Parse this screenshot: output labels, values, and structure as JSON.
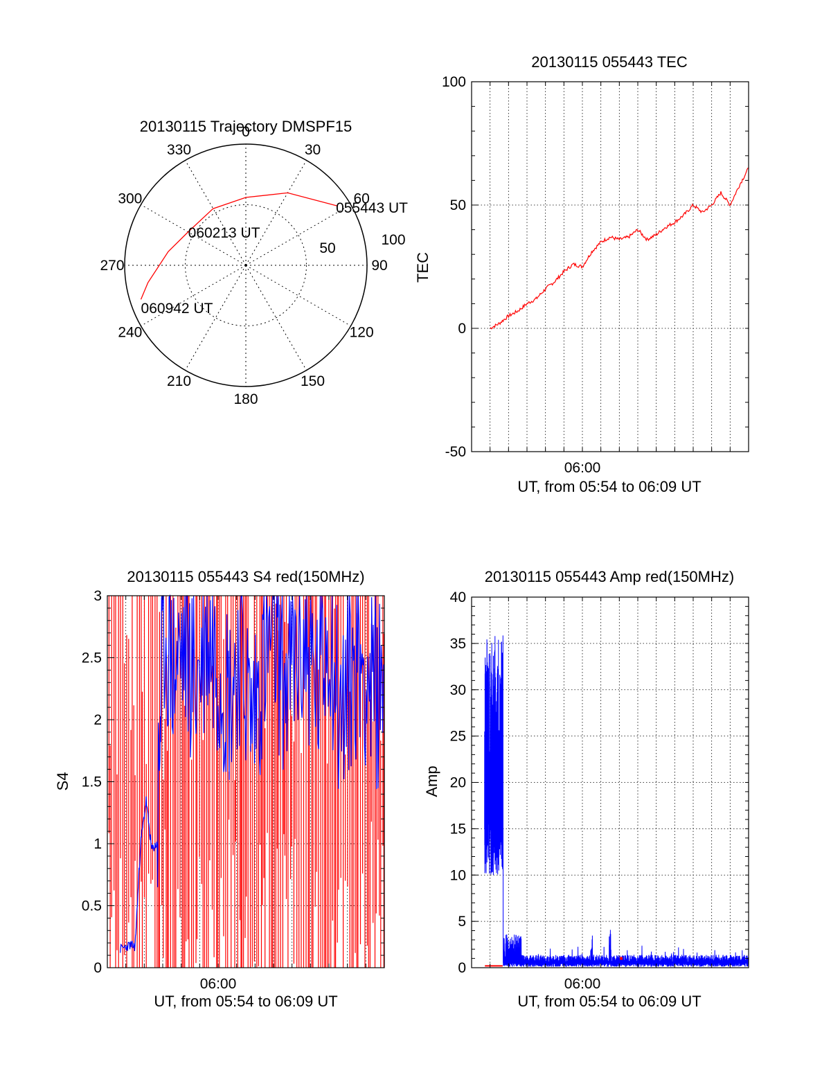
{
  "chart_data": [
    {
      "type": "polar",
      "title": "20130115 Trajectory DMSPF15",
      "angle_labels": [
        "0",
        "30",
        "60",
        "90",
        "120",
        "150",
        "180",
        "210",
        "240",
        "270",
        "300",
        "330"
      ],
      "angle_values": [
        0,
        30,
        60,
        90,
        120,
        150,
        180,
        210,
        240,
        270,
        300,
        330
      ],
      "radial_labels": [
        "50",
        "100"
      ],
      "radial_values": [
        50,
        100
      ],
      "rlim": [
        0,
        100
      ],
      "grid": true,
      "colors": {
        "track": "#ff0000"
      },
      "track": {
        "name": "",
        "points": [
          {
            "az": 57,
            "r": 90,
            "label": "055443 UT"
          },
          {
            "az": 30,
            "r": 69
          },
          {
            "az": 0,
            "r": 56
          },
          {
            "az": 330,
            "r": 54
          },
          {
            "az": 300,
            "r": 55,
            "label": "060213 UT"
          },
          {
            "az": 280,
            "r": 65
          },
          {
            "az": 260,
            "r": 82
          },
          {
            "az": 252,
            "r": 91,
            "label": "060942 UT"
          }
        ]
      }
    },
    {
      "type": "line",
      "title": "20130115 055443 TEC",
      "ylabel": "TEC",
      "xlabel": "UT, from 05:54 to 06:09 UT",
      "x_tick_labels": [
        "06:00"
      ],
      "x_tick_values": [
        6.0
      ],
      "xlim": [
        5.9,
        6.15
      ],
      "ylim": [
        -50,
        100
      ],
      "y_ticks": [
        -50,
        0,
        50,
        100
      ],
      "grid": true,
      "colors": {
        "line": "#ff0000"
      },
      "series": [
        {
          "name": "",
          "x": [
            5.9167,
            5.925,
            5.9333,
            5.9417,
            5.95,
            5.9583,
            5.9667,
            5.975,
            5.9833,
            5.9917,
            6.0,
            6.0083,
            6.0167,
            6.025,
            6.0333,
            6.0417,
            6.05,
            6.0583,
            6.0667,
            6.075,
            6.0833,
            6.0917,
            6.1,
            6.1083,
            6.1167,
            6.125,
            6.1333,
            6.1417,
            6.15
          ],
          "y": [
            0,
            2,
            5,
            7,
            10,
            12,
            16,
            19,
            23,
            26,
            25,
            31,
            35,
            37,
            36,
            37,
            40,
            36,
            38,
            41,
            43,
            46,
            50,
            47,
            50,
            55,
            50,
            58,
            65
          ]
        }
      ]
    },
    {
      "type": "line",
      "title": "20130115 055443 S4 red(150MHz)",
      "ylabel": "S4",
      "xlabel": "UT, from 05:54 to 06:09 UT",
      "x_tick_labels": [
        "06:00"
      ],
      "x_tick_values": [
        6.0
      ],
      "xlim": [
        5.9,
        6.15
      ],
      "ylim": [
        0,
        3
      ],
      "y_ticks": [
        0,
        0.5,
        1,
        1.5,
        2,
        2.5,
        3
      ],
      "y_tick_labels": [
        "0",
        "0.5",
        "1",
        "1.5",
        "2",
        "2.5",
        "3"
      ],
      "grid": true,
      "colors": {
        "red": "#ff0000",
        "blue": "#0000ff"
      },
      "series": [
        {
          "name": "",
          "color": "red",
          "description_values": "vertical fills 0 to 3 across full range"
        },
        {
          "name": "",
          "color": "blue",
          "x": [
            5.9117,
            5.92,
            5.925,
            5.93,
            5.935,
            5.94,
            5.945,
            5.95,
            5.96,
            5.97,
            5.98,
            5.99,
            6.0,
            6.01,
            6.02,
            6.03,
            6.04,
            6.05,
            6.06,
            6.07,
            6.08,
            6.09,
            6.1,
            6.11,
            6.12,
            6.13,
            6.14,
            6.15
          ],
          "y": [
            0.15,
            0.18,
            0.17,
            1.0,
            1.35,
            0.95,
            1.0,
            2.8,
            2.4,
            2.6,
            2.3,
            2.7,
            2.5,
            2.2,
            2.6,
            2.0,
            2.4,
            2.7,
            2.3,
            2.5,
            2.6,
            2.2,
            2.8,
            2.0,
            2.4,
            2.5,
            2.2,
            2.3
          ]
        }
      ]
    },
    {
      "type": "line",
      "title": "20130115 055443 Amp red(150MHz)",
      "ylabel": "Amp",
      "xlabel": "UT, from 05:54 to 06:09 UT",
      "x_tick_labels": [
        "06:00"
      ],
      "x_tick_values": [
        6.0
      ],
      "xlim": [
        5.9,
        6.15
      ],
      "ylim": [
        0,
        40
      ],
      "y_ticks": [
        0,
        5,
        10,
        15,
        20,
        25,
        30,
        35,
        40
      ],
      "grid": true,
      "colors": {
        "red": "#ff0000",
        "blue": "#0000ff"
      },
      "series": [
        {
          "name": "",
          "color": "blue",
          "x": [
            5.9117,
            5.9133,
            5.915,
            5.9167,
            5.9183,
            5.92,
            5.9217,
            5.9233,
            5.925,
            5.9267,
            5.9283,
            5.93,
            5.935,
            5.94,
            5.95,
            5.96,
            5.97,
            5.98,
            5.99,
            6.0,
            6.01,
            6.02,
            6.03,
            6.04,
            6.05,
            6.06,
            6.07,
            6.08,
            6.09,
            6.1,
            6.11,
            6.12,
            6.13,
            6.14,
            6.15
          ],
          "y": [
            17,
            36,
            12,
            34,
            15,
            35,
            10,
            33,
            17,
            35,
            14,
            1.0,
            3.5,
            2.5,
            1.0,
            0.8,
            0.9,
            1.2,
            0.8,
            0.9,
            0.8,
            0.9,
            1.0,
            0.8,
            0.9,
            1.0,
            0.8,
            1.1,
            0.9,
            1.2,
            1.0,
            0.8,
            1.3,
            1.0,
            1.4
          ]
        },
        {
          "name": "",
          "color": "red",
          "x": [
            5.912,
            5.928,
            6.035
          ],
          "y": [
            0.2,
            0.2,
            1.0
          ]
        }
      ]
    }
  ]
}
